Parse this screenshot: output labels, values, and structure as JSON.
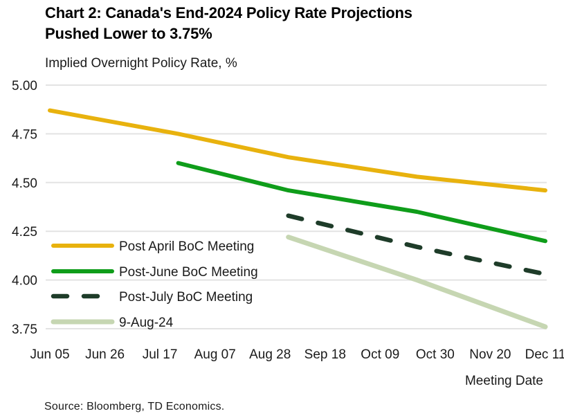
{
  "header": {
    "title_line1": "Chart 2: Canada's End-2024 Policy Rate Projections",
    "title_line2": "Pushed Lower to 3.75%",
    "subtitle": "Implied Overnight Policy Rate, %"
  },
  "footer": {
    "xlabel": "Meeting Date",
    "source": "Source: Bloomberg, TD Economics."
  },
  "chart_data": {
    "type": "line",
    "title": "Chart 2: Canada's End-2024 Policy Rate Projections Pushed Lower to 3.75%",
    "ylabel": "Implied Overnight Policy Rate, %",
    "xlabel": "Meeting Date",
    "source": "Source: Bloomberg, TD Economics.",
    "ylim": [
      3.75,
      5.0
    ],
    "y_ticks": [
      5.0,
      4.75,
      4.5,
      4.25,
      4.0,
      3.75
    ],
    "y_tick_labels": [
      "5.00",
      "4.75",
      "4.50",
      "4.25",
      "4.00",
      "3.75"
    ],
    "x_tick_labels": [
      "Jun 05",
      "Jun 26",
      "Jul 17",
      "Aug 07",
      "Aug 28",
      "Sep 18",
      "Oct 09",
      "Oct 30",
      "Nov 20",
      "Dec 11"
    ],
    "x_tick_interval_days": 21,
    "x_range_days": [
      0,
      189
    ],
    "grid": "horizontal",
    "gridline_color": "#E3E3E3",
    "legend_position": "inside-left",
    "series": [
      {
        "name": "Post April BoC Meeting",
        "color": "#E8B20E",
        "line_style": "solid",
        "points": [
          {
            "meeting": "Jun 05",
            "x_day": 0,
            "y": 4.87
          },
          {
            "meeting": "Jul 24",
            "x_day": 49,
            "y": 4.75
          },
          {
            "meeting": "Sep 04",
            "x_day": 91,
            "y": 4.63
          },
          {
            "meeting": "Oct 23",
            "x_day": 140,
            "y": 4.53
          },
          {
            "meeting": "Dec 11",
            "x_day": 189,
            "y": 4.46
          }
        ]
      },
      {
        "name": "Post-June BoC Meeting",
        "color": "#0F9D1A",
        "line_style": "solid",
        "points": [
          {
            "meeting": "Jul 24",
            "x_day": 49,
            "y": 4.6
          },
          {
            "meeting": "Sep 04",
            "x_day": 91,
            "y": 4.46
          },
          {
            "meeting": "Oct 23",
            "x_day": 140,
            "y": 4.35
          },
          {
            "meeting": "Dec 11",
            "x_day": 189,
            "y": 4.2
          }
        ]
      },
      {
        "name": "Post-July BoC Meeting",
        "color": "#1E3C29",
        "line_style": "dashed",
        "points": [
          {
            "meeting": "Sep 04",
            "x_day": 91,
            "y": 4.33
          },
          {
            "meeting": "Oct 23",
            "x_day": 140,
            "y": 4.17
          },
          {
            "meeting": "Dec 11",
            "x_day": 189,
            "y": 4.03
          }
        ]
      },
      {
        "name": "9-Aug-24",
        "color": "#C6D6B2",
        "line_style": "solid",
        "points": [
          {
            "meeting": "Sep 04",
            "x_day": 91,
            "y": 4.22
          },
          {
            "meeting": "Oct 23",
            "x_day": 140,
            "y": 4.0
          },
          {
            "meeting": "Dec 11",
            "x_day": 189,
            "y": 3.76
          }
        ]
      }
    ]
  }
}
